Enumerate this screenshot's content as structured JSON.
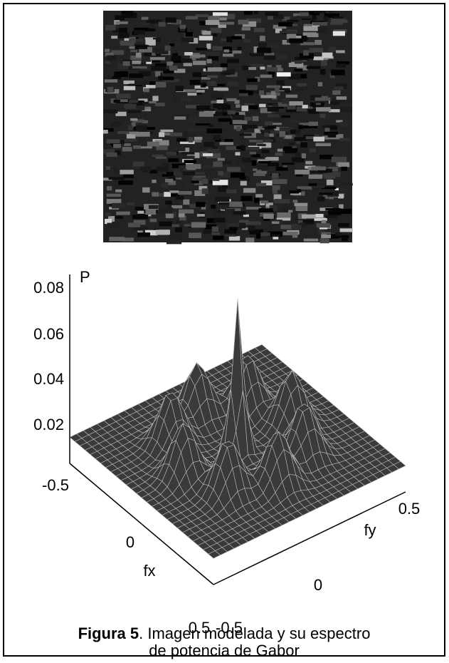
{
  "figure": {
    "z_axis": {
      "label": "P",
      "ticks": [
        "0.08",
        "0.06",
        "0.04",
        "0.02"
      ]
    },
    "fx_axis": {
      "label": "fx",
      "ticks": [
        "-0.5",
        "0",
        "0.5"
      ]
    },
    "fy_axis": {
      "label": "fy",
      "ticks": [
        "-0.5",
        "0",
        "0.5"
      ]
    }
  },
  "caption": {
    "label": "Figura 5",
    "lines": [
      ". Imagen modelada y su espectro",
      "de potencia de Gabor"
    ]
  }
}
